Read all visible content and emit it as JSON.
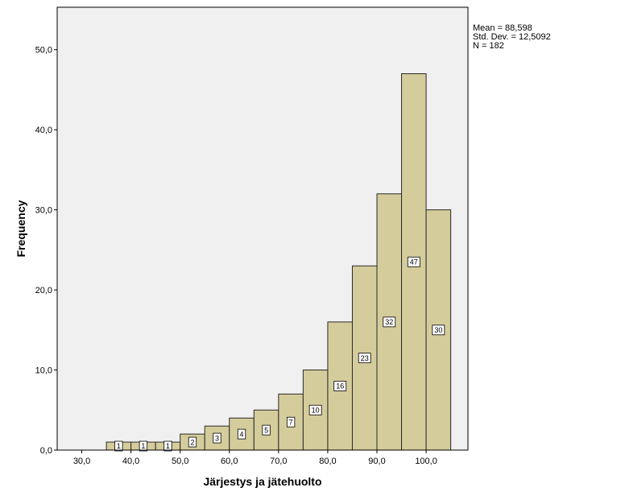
{
  "chart_data": {
    "type": "bar",
    "subtype": "histogram",
    "xlabel": "Järjestys ja jätehuolto",
    "ylabel": "Frequency",
    "xlim": [
      25,
      108.5
    ],
    "ylim": [
      0,
      55.3
    ],
    "x_ticks": [
      "30,0",
      "40,0",
      "50,0",
      "60,0",
      "70,0",
      "80,0",
      "90,0",
      "100,0"
    ],
    "x_tick_values": [
      30,
      40,
      50,
      60,
      70,
      80,
      90,
      100
    ],
    "y_ticks": [
      "0,0",
      "10,0",
      "20,0",
      "30,0",
      "40,0",
      "50,0"
    ],
    "y_tick_values": [
      0,
      10,
      20,
      30,
      40,
      50
    ],
    "bins": [
      {
        "start": 35,
        "end": 40,
        "value": 1,
        "label": "1"
      },
      {
        "start": 40,
        "end": 45,
        "value": 1,
        "label": "1"
      },
      {
        "start": 45,
        "end": 50,
        "value": 1,
        "label": "1"
      },
      {
        "start": 50,
        "end": 55,
        "value": 2,
        "label": "2"
      },
      {
        "start": 55,
        "end": 60,
        "value": 3,
        "label": "3"
      },
      {
        "start": 60,
        "end": 65,
        "value": 4,
        "label": "4"
      },
      {
        "start": 65,
        "end": 70,
        "value": 5,
        "label": "5"
      },
      {
        "start": 70,
        "end": 75,
        "value": 7,
        "label": "7"
      },
      {
        "start": 75,
        "end": 80,
        "value": 10,
        "label": "10"
      },
      {
        "start": 80,
        "end": 85,
        "value": 16,
        "label": "16"
      },
      {
        "start": 85,
        "end": 90,
        "value": 23,
        "label": "23"
      },
      {
        "start": 90,
        "end": 95,
        "value": 32,
        "label": "32"
      },
      {
        "start": 95,
        "end": 100,
        "value": 47,
        "label": "47"
      },
      {
        "start": 100,
        "end": 105,
        "value": 30,
        "label": "30"
      }
    ],
    "stats": {
      "mean": "Mean = 88,598",
      "std": "Std. Dev. = 12,5092",
      "n": "N = 182"
    },
    "grid": false,
    "legend": "none",
    "colors": {
      "bar_fill": "#d4cc9b",
      "bar_stroke": "#2b2b2b",
      "plot_background": "#f0f0f0",
      "axis": "#000000"
    }
  }
}
